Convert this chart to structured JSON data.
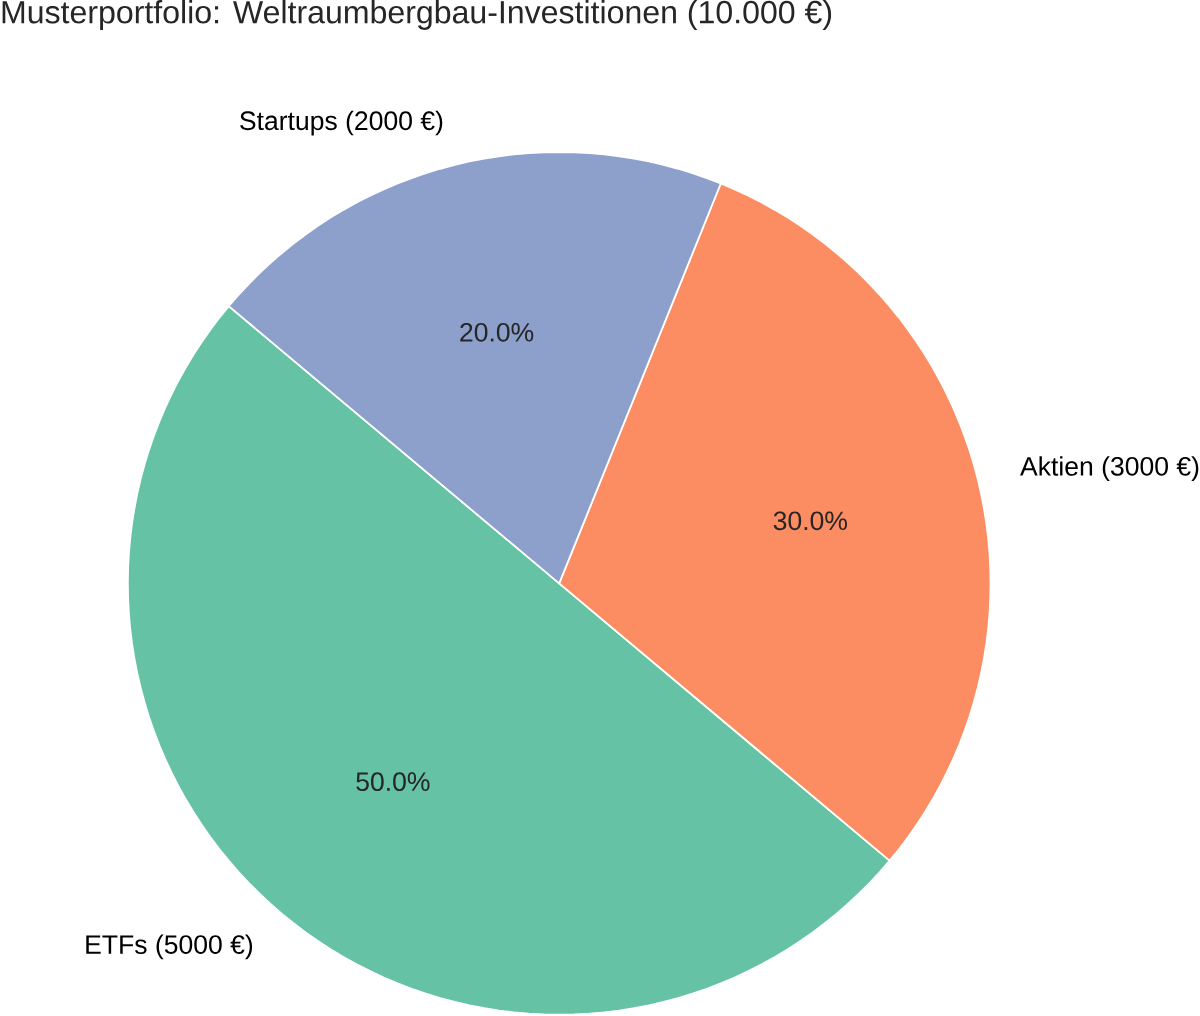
{
  "chart_data": {
    "type": "pie",
    "title": "Musterportfolio: Weltraumbergbau-Investitionen (10.000 €)",
    "categories": [
      "ETFs (5000 €)",
      "Aktien (3000 €)",
      "Startups (2000 €)"
    ],
    "values": [
      50,
      30,
      20
    ],
    "value_labels": [
      "50.0%",
      "30.0%",
      "20.0%"
    ],
    "colors": [
      "#66c2a5",
      "#fc8d62",
      "#8da0cb"
    ]
  }
}
